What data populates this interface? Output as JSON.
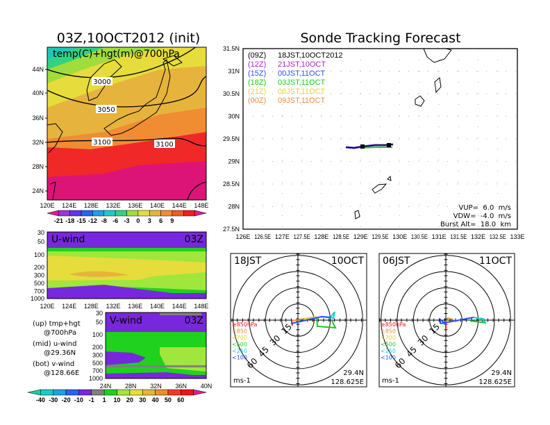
{
  "left_map": {
    "title": "03Z,10OCT2012 (init)",
    "subtitle": "temp(C)+hgt(m)@700hPa",
    "lat_labels": [
      "44N",
      "40N",
      "36N",
      "32N",
      "28N",
      "24N"
    ],
    "lon_labels": [
      "120E",
      "124E",
      "128E",
      "132E",
      "136E",
      "140E",
      "144E",
      "148E"
    ],
    "contour_labels": [
      "3000",
      "3050",
      "3100",
      "3100"
    ],
    "colorbar_labels": [
      "-21",
      "-18",
      "-15",
      "-12",
      "-8",
      "-6",
      "-3",
      "0",
      "3",
      "6",
      "9"
    ],
    "colorbar_colors": [
      "#dc1e96",
      "#a032dc",
      "#6432f0",
      "#2864f0",
      "#1ea0e6",
      "#1ec8c8",
      "#32d282",
      "#a0dc3c",
      "#e6dc3c",
      "#e6b43c",
      "#f08c32",
      "#f05a28",
      "#f01e1e",
      "#dc1e96"
    ]
  },
  "u_wind": {
    "label": "U-wind",
    "time": "03Z",
    "p_labels": [
      "30",
      "50",
      "100",
      "200",
      "300",
      "500",
      "700",
      "1000"
    ],
    "lon_labels": [
      "120E",
      "124E",
      "128E",
      "132E",
      "136E",
      "140E",
      "144E",
      "148E"
    ]
  },
  "v_wind": {
    "label": "V-wind",
    "time": "03Z",
    "p_labels": [
      "30",
      "50",
      "100",
      "200",
      "300",
      "500",
      "700",
      "1000"
    ],
    "lat_labels": [
      "24N",
      "28N",
      "32N",
      "36N",
      "40N"
    ]
  },
  "notes": [
    {
      "line1": "(up) tmp+hgt",
      "line2": "@700hPa"
    },
    {
      "line1": "(mid) u-wind",
      "line2": "@29.36N"
    },
    {
      "line1": "(bot) v-wind",
      "line2": "@128.66E"
    }
  ],
  "wind_colorbar": {
    "labels": [
      "-40",
      "-30",
      "-20",
      "-10",
      "-1",
      "1",
      "10",
      "20",
      "30",
      "40",
      "50",
      "60"
    ],
    "colors": [
      "#1ec8a0",
      "#1ec8c8",
      "#1ea0e6",
      "#2864f0",
      "#7828dc",
      "#808080",
      "#1ed21e",
      "#a0e63c",
      "#e6dc3c",
      "#e6b43c",
      "#f08c28",
      "#f03c1e",
      "#f01414",
      "#dc1e96"
    ]
  },
  "sonde_map": {
    "title": "Sonde Tracking Forecast",
    "lat_labels": [
      "31.5N",
      "31N",
      "30.5N",
      "30N",
      "29.5N",
      "29N",
      "28.5N",
      "28N",
      "27.5N"
    ],
    "lon_labels": [
      "126E",
      "126.5E",
      "127E",
      "127.5E",
      "128E",
      "128.5E",
      "129E",
      "129.5E",
      "130E",
      "130.5E",
      "131E",
      "131.5E",
      "132E",
      "132.5E",
      "133E"
    ],
    "legend": [
      {
        "utc": "(09Z)",
        "jst": "18JST,10OCT2012",
        "color": "#000000"
      },
      {
        "utc": "(12Z)",
        "jst": "21JST,10OCT",
        "color": "#b41ec8"
      },
      {
        "utc": "(15Z)",
        "jst": "00JST,11OCT",
        "color": "#2850f0"
      },
      {
        "utc": "(18Z)",
        "jst": "03JST,11OCT",
        "color": "#1ec81e"
      },
      {
        "utc": "(21Z)",
        "jst": "06JST,11OCT",
        "color": "#e6d232"
      },
      {
        "utc": "(00Z)",
        "jst": "09JST,11OCT",
        "color": "#f08c3c"
      }
    ],
    "params": [
      "VUP=  6.0  m/s",
      "VDW=  -4.0  m/s",
      "Burst Alt=  18.0  km"
    ]
  },
  "hodographs": [
    {
      "time": "18JST",
      "date": "10OCT",
      "lat": "29.4N",
      "lon": "128.625E",
      "unit": "ms-1"
    },
    {
      "time": "06JST",
      "date": "11OCT",
      "lat": "29.4N",
      "lon": "128.625E",
      "unit": "ms-1"
    }
  ],
  "hodo_rings": [
    "15",
    "30",
    "45",
    "60"
  ],
  "hodo_legend": [
    {
      "label": "≥850hPa",
      "color": "#f01414"
    },
    {
      "label": "<850",
      "color": "#f08c28"
    },
    {
      "label": "<700",
      "color": "#e6d232"
    },
    {
      "label": "<500",
      "color": "#1ec81e"
    },
    {
      "label": "<250",
      "color": "#1ec8d2"
    },
    {
      "label": "<100",
      "color": "#2850f0"
    }
  ]
}
